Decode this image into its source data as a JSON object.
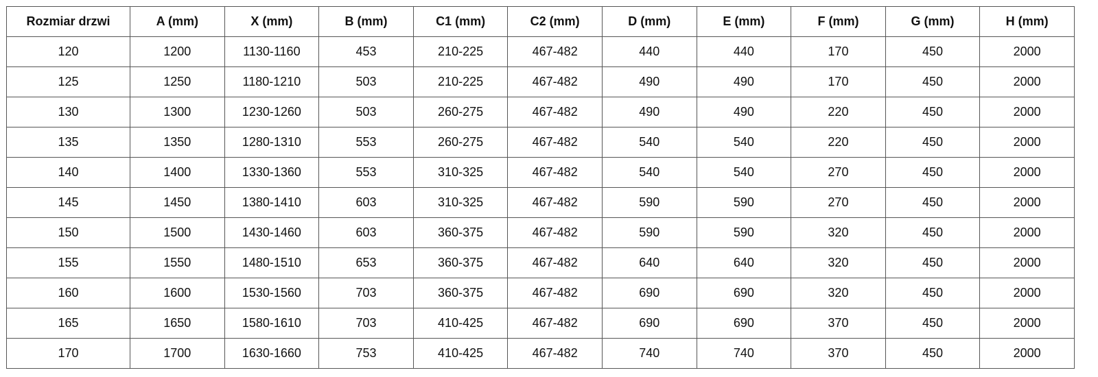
{
  "table": {
    "headers": [
      "Rozmiar drzwi",
      "A (mm)",
      "X (mm)",
      "B (mm)",
      "C1 (mm)",
      "C2 (mm)",
      "D (mm)",
      "E (mm)",
      "F (mm)",
      "G (mm)",
      "H (mm)"
    ],
    "rows": [
      [
        "120",
        "1200",
        "1130-1160",
        "453",
        "210-225",
        "467-482",
        "440",
        "440",
        "170",
        "450",
        "2000"
      ],
      [
        "125",
        "1250",
        "1180-1210",
        "503",
        "210-225",
        "467-482",
        "490",
        "490",
        "170",
        "450",
        "2000"
      ],
      [
        "130",
        "1300",
        "1230-1260",
        "503",
        "260-275",
        "467-482",
        "490",
        "490",
        "220",
        "450",
        "2000"
      ],
      [
        "135",
        "1350",
        "1280-1310",
        "553",
        "260-275",
        "467-482",
        "540",
        "540",
        "220",
        "450",
        "2000"
      ],
      [
        "140",
        "1400",
        "1330-1360",
        "553",
        "310-325",
        "467-482",
        "540",
        "540",
        "270",
        "450",
        "2000"
      ],
      [
        "145",
        "1450",
        "1380-1410",
        "603",
        "310-325",
        "467-482",
        "590",
        "590",
        "270",
        "450",
        "2000"
      ],
      [
        "150",
        "1500",
        "1430-1460",
        "603",
        "360-375",
        "467-482",
        "590",
        "590",
        "320",
        "450",
        "2000"
      ],
      [
        "155",
        "1550",
        "1480-1510",
        "653",
        "360-375",
        "467-482",
        "640",
        "640",
        "320",
        "450",
        "2000"
      ],
      [
        "160",
        "1600",
        "1530-1560",
        "703",
        "360-375",
        "467-482",
        "690",
        "690",
        "320",
        "450",
        "2000"
      ],
      [
        "165",
        "1650",
        "1580-1610",
        "703",
        "410-425",
        "467-482",
        "690",
        "690",
        "370",
        "450",
        "2000"
      ],
      [
        "170",
        "1700",
        "1630-1660",
        "753",
        "410-425",
        "467-482",
        "740",
        "740",
        "370",
        "450",
        "2000"
      ]
    ]
  }
}
